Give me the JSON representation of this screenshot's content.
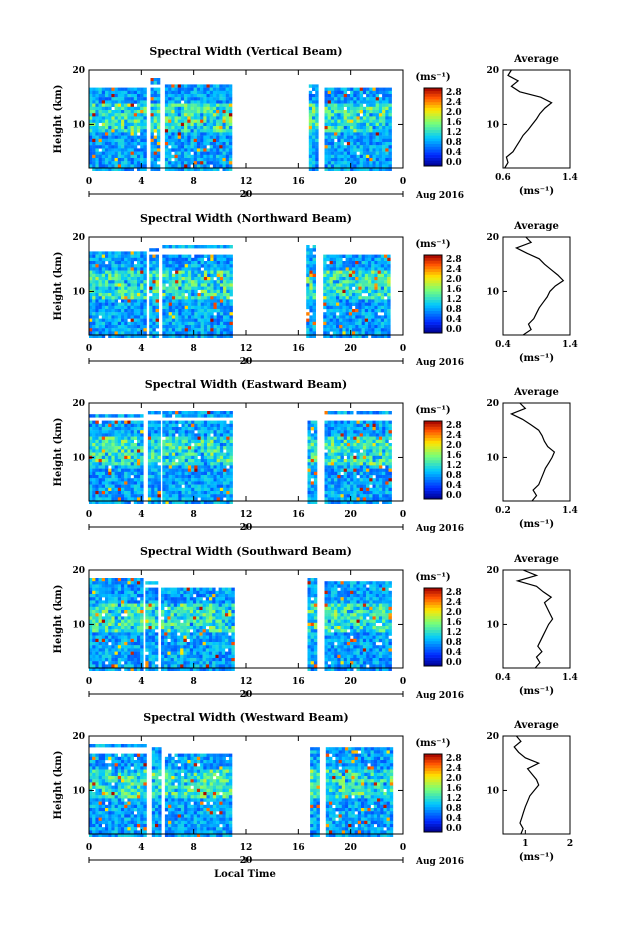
{
  "figure": {
    "xlabel": "Local Time",
    "date_label": "Aug 2016",
    "day_marker": "20"
  },
  "chart_data": [
    {
      "type": "heatmap",
      "title": "Spectral Width (Vertical Beam)",
      "ylabel": "Height (km)",
      "xticks": [
        "0",
        "4",
        "8",
        "12",
        "16",
        "20",
        "0"
      ],
      "yticks": [
        "10",
        "20"
      ],
      "xlim": [
        0,
        24
      ],
      "ylim": [
        2,
        20
      ],
      "data_hours": [
        [
          0,
          4.3
        ],
        [
          4.7,
          5.4
        ],
        [
          5.8,
          10.8
        ],
        [
          16.8,
          17.4
        ],
        [
          18.0,
          23.0
        ]
      ],
      "colorbar": {
        "unit": "(ms⁻¹)",
        "ticks": [
          "0.0",
          "0.4",
          "0.8",
          "1.2",
          "1.6",
          "2.0",
          "2.4",
          "2.8"
        ],
        "range": [
          0,
          2.8
        ]
      },
      "profile": {
        "title": "Average",
        "xlabel": "(ms⁻¹)",
        "xticks": [
          "0.6",
          "1.4"
        ],
        "xlim": [
          0.6,
          1.4
        ],
        "yticks": [
          "10",
          "20"
        ],
        "heights": [
          2,
          3,
          4,
          5,
          6,
          7,
          8,
          9,
          10,
          11,
          12,
          13,
          14,
          15,
          16,
          17,
          18,
          19,
          20
        ],
        "values": [
          0.62,
          0.66,
          0.64,
          0.72,
          0.76,
          0.8,
          0.84,
          0.9,
          0.95,
          1.0,
          1.04,
          1.1,
          1.18,
          1.05,
          0.8,
          0.7,
          0.78,
          0.66,
          0.7
        ]
      }
    },
    {
      "type": "heatmap",
      "title": "Spectral Width (Northward Beam)",
      "ylabel": "Height (km)",
      "xticks": [
        "0",
        "4",
        "8",
        "12",
        "16",
        "20",
        "0"
      ],
      "yticks": [
        "10",
        "20"
      ],
      "xlim": [
        0,
        24
      ],
      "ylim": [
        2,
        20
      ],
      "data_hours": [
        [
          0,
          4.2
        ],
        [
          4.6,
          5.3
        ],
        [
          5.6,
          10.9
        ],
        [
          16.6,
          17.3
        ],
        [
          17.9,
          22.9
        ]
      ],
      "colorbar": {
        "unit": "(ms⁻¹)",
        "ticks": [
          "0.0",
          "0.4",
          "0.8",
          "1.2",
          "1.6",
          "2.0",
          "2.4",
          "2.8"
        ],
        "range": [
          0,
          2.8
        ]
      },
      "profile": {
        "title": "Average",
        "xlabel": "(ms⁻¹)",
        "xticks": [
          "0.4",
          "1.4"
        ],
        "xlim": [
          0.4,
          1.4
        ],
        "yticks": [
          "10",
          "20"
        ],
        "heights": [
          2,
          3,
          4,
          5,
          6,
          7,
          8,
          9,
          10,
          11,
          12,
          13,
          14,
          15,
          16,
          17,
          18,
          19,
          20
        ],
        "values": [
          0.7,
          0.82,
          0.78,
          0.86,
          0.9,
          0.94,
          1.0,
          1.06,
          1.1,
          1.18,
          1.3,
          1.22,
          1.12,
          1.02,
          0.94,
          0.76,
          0.6,
          0.82,
          0.74
        ]
      }
    },
    {
      "type": "heatmap",
      "title": "Spectral Width (Eastward Beam)",
      "ylabel": "Height (km)",
      "xticks": [
        "0",
        "4",
        "8",
        "12",
        "16",
        "20",
        "0"
      ],
      "yticks": [
        "10",
        "20"
      ],
      "xlim": [
        0,
        24
      ],
      "ylim": [
        2,
        20
      ],
      "data_hours": [
        [
          0,
          4.1
        ],
        [
          4.5,
          5.3
        ],
        [
          5.6,
          10.8
        ],
        [
          16.7,
          17.4
        ],
        [
          18.0,
          23.0
        ]
      ],
      "colorbar": {
        "unit": "(ms⁻¹)",
        "ticks": [
          "0.0",
          "0.4",
          "0.8",
          "1.2",
          "1.6",
          "2.0",
          "2.4",
          "2.8"
        ],
        "range": [
          0,
          2.8
        ]
      },
      "profile": {
        "title": "Average",
        "xlabel": "(ms⁻¹)",
        "xticks": [
          "0.2",
          "1.4"
        ],
        "xlim": [
          0.2,
          1.4
        ],
        "yticks": [
          "10",
          "20"
        ],
        "heights": [
          2,
          3,
          4,
          5,
          6,
          7,
          8,
          9,
          10,
          11,
          12,
          13,
          14,
          15,
          16,
          17,
          18,
          19,
          20
        ],
        "values": [
          0.72,
          0.8,
          0.74,
          0.84,
          0.88,
          0.92,
          0.96,
          1.02,
          1.08,
          1.12,
          1.0,
          0.94,
          0.9,
          0.84,
          0.7,
          0.55,
          0.35,
          0.6,
          0.5
        ]
      }
    },
    {
      "type": "heatmap",
      "title": "Spectral Width (Southward Beam)",
      "ylabel": "Height (km)",
      "xticks": [
        "0",
        "4",
        "8",
        "12",
        "16",
        "20",
        "0"
      ],
      "yticks": [
        "10",
        "20"
      ],
      "xlim": [
        0,
        24
      ],
      "ylim": [
        2,
        20
      ],
      "data_hours": [
        [
          0,
          4.0
        ],
        [
          4.3,
          5.2
        ],
        [
          5.5,
          10.9
        ],
        [
          16.7,
          17.4
        ],
        [
          18.0,
          23.0
        ]
      ],
      "colorbar": {
        "unit": "(ms⁻¹)",
        "ticks": [
          "0.0",
          "0.4",
          "0.8",
          "1.2",
          "1.6",
          "2.0",
          "2.4",
          "2.8"
        ],
        "range": [
          0,
          2.8
        ]
      },
      "profile": {
        "title": "Average",
        "xlabel": "(ms⁻¹)",
        "xticks": [
          "0.4",
          "1.4"
        ],
        "xlim": [
          0.4,
          1.4
        ],
        "yticks": [
          "10",
          "20"
        ],
        "heights": [
          2,
          3,
          4,
          5,
          6,
          7,
          8,
          9,
          10,
          11,
          12,
          13,
          14,
          15,
          16,
          17,
          18,
          19,
          20
        ],
        "values": [
          0.88,
          0.95,
          0.9,
          0.98,
          0.92,
          0.96,
          1.0,
          1.04,
          1.08,
          1.14,
          1.1,
          1.06,
          1.02,
          1.12,
          1.0,
          0.9,
          0.62,
          0.9,
          0.7
        ]
      }
    },
    {
      "type": "heatmap",
      "title": "Spectral Width (Westward Beam)",
      "ylabel": "Height (km)",
      "xticks": [
        "0",
        "4",
        "8",
        "12",
        "16",
        "20",
        "0"
      ],
      "yticks": [
        "10",
        "20"
      ],
      "xlim": [
        0,
        24
      ],
      "ylim": [
        2,
        20
      ],
      "data_hours": [
        [
          0,
          4.4
        ],
        [
          4.8,
          5.5
        ],
        [
          5.8,
          10.9
        ],
        [
          16.9,
          17.5
        ],
        [
          18.1,
          23.1
        ]
      ],
      "colorbar": {
        "unit": "(ms⁻¹)",
        "ticks": [
          "0.0",
          "0.4",
          "0.8",
          "1.2",
          "1.6",
          "2.0",
          "2.4",
          "2.8"
        ],
        "range": [
          0,
          2.8
        ]
      },
      "profile": {
        "title": "Average",
        "xlabel": "(ms⁻¹)",
        "xticks": [
          "1",
          "2"
        ],
        "xlim": [
          0.5,
          2.0
        ],
        "yticks": [
          "10",
          "20"
        ],
        "heights": [
          2,
          3,
          4,
          5,
          6,
          7,
          8,
          9,
          10,
          11,
          12,
          13,
          14,
          15,
          16,
          17,
          18,
          19,
          20
        ],
        "values": [
          0.9,
          0.95,
          0.88,
          0.92,
          0.96,
          1.0,
          1.05,
          1.1,
          1.2,
          1.3,
          1.25,
          1.15,
          1.05,
          1.3,
          1.0,
          0.85,
          0.75,
          0.9,
          0.8
        ]
      }
    }
  ]
}
